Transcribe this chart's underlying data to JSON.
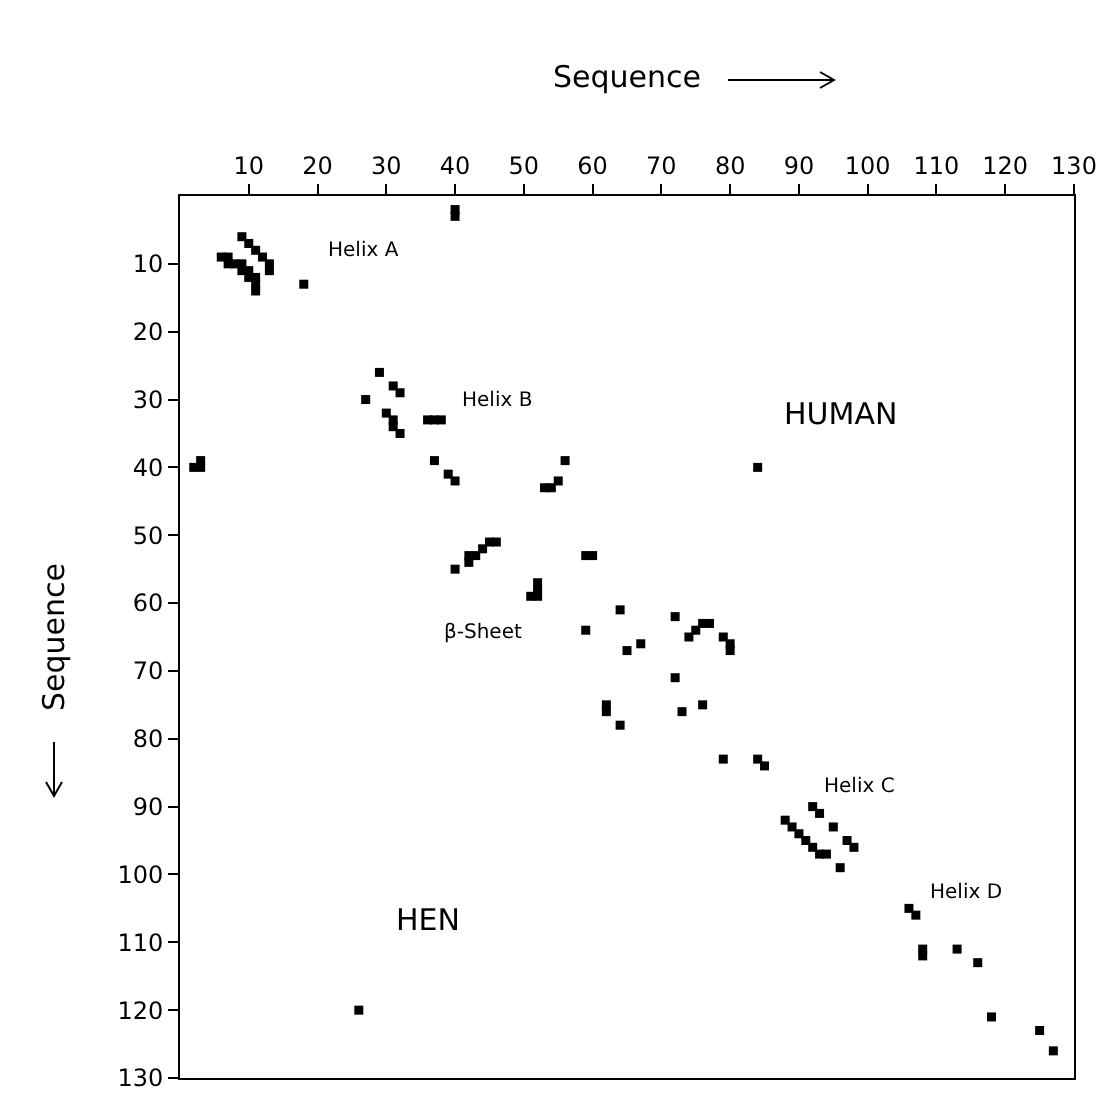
{
  "chart_data": {
    "type": "scatter",
    "xlabel": "Sequence",
    "ylabel": "Sequence",
    "xlim": [
      0,
      130
    ],
    "xticks": [
      10,
      20,
      30,
      40,
      50,
      60,
      70,
      80,
      90,
      100,
      110,
      120,
      130
    ],
    "ylim": [
      130,
      0
    ],
    "yticks": [
      10,
      20,
      30,
      40,
      50,
      60,
      70,
      80,
      90,
      100,
      110,
      120,
      130
    ],
    "marker": "square",
    "series": [
      {
        "color": "#000000",
        "x": [
          40,
          40,
          9,
          10,
          11,
          12,
          13,
          13,
          6,
          7,
          7,
          8,
          9,
          9,
          10,
          10,
          11,
          11,
          11,
          18,
          2,
          3,
          3,
          27,
          29,
          31,
          32,
          30,
          31,
          31,
          32,
          36,
          37,
          38,
          37,
          39,
          40,
          40,
          42,
          42,
          43,
          44,
          45,
          46,
          53,
          54,
          55,
          56,
          52,
          52,
          52,
          51,
          59,
          60,
          59,
          84,
          64,
          72,
          74,
          75,
          76,
          77,
          79,
          67,
          65,
          80,
          80,
          72,
          62,
          62,
          64,
          73,
          76,
          79,
          84,
          85,
          88,
          89,
          90,
          91,
          92,
          93,
          94,
          92,
          93,
          95,
          97,
          98,
          96,
          106,
          107,
          108,
          108,
          113,
          116,
          118,
          125,
          127,
          26
        ],
        "values": [
          2,
          3,
          6,
          7,
          8,
          9,
          10,
          11,
          9,
          9,
          10,
          10,
          10,
          11,
          11,
          12,
          12,
          13,
          14,
          13,
          40,
          39,
          40,
          30,
          26,
          28,
          29,
          32,
          33,
          34,
          35,
          33,
          33,
          33,
          39,
          41,
          42,
          55,
          54,
          53,
          53,
          52,
          51,
          51,
          43,
          43,
          42,
          39,
          57,
          58,
          59,
          59,
          53,
          53,
          64,
          40,
          61,
          62,
          65,
          64,
          63,
          63,
          65,
          66,
          67,
          66,
          67,
          71,
          75,
          76,
          78,
          76,
          75,
          83,
          83,
          84,
          92,
          93,
          94,
          95,
          96,
          97,
          97,
          90,
          91,
          93,
          95,
          96,
          99,
          105,
          106,
          111,
          112,
          111,
          113,
          121,
          123,
          126,
          120
        ]
      }
    ],
    "annotations": [
      "Helix A",
      "Helix B",
      "HUMAN",
      "β-Sheet",
      "Helix C",
      "Helix D",
      "HEN"
    ]
  }
}
